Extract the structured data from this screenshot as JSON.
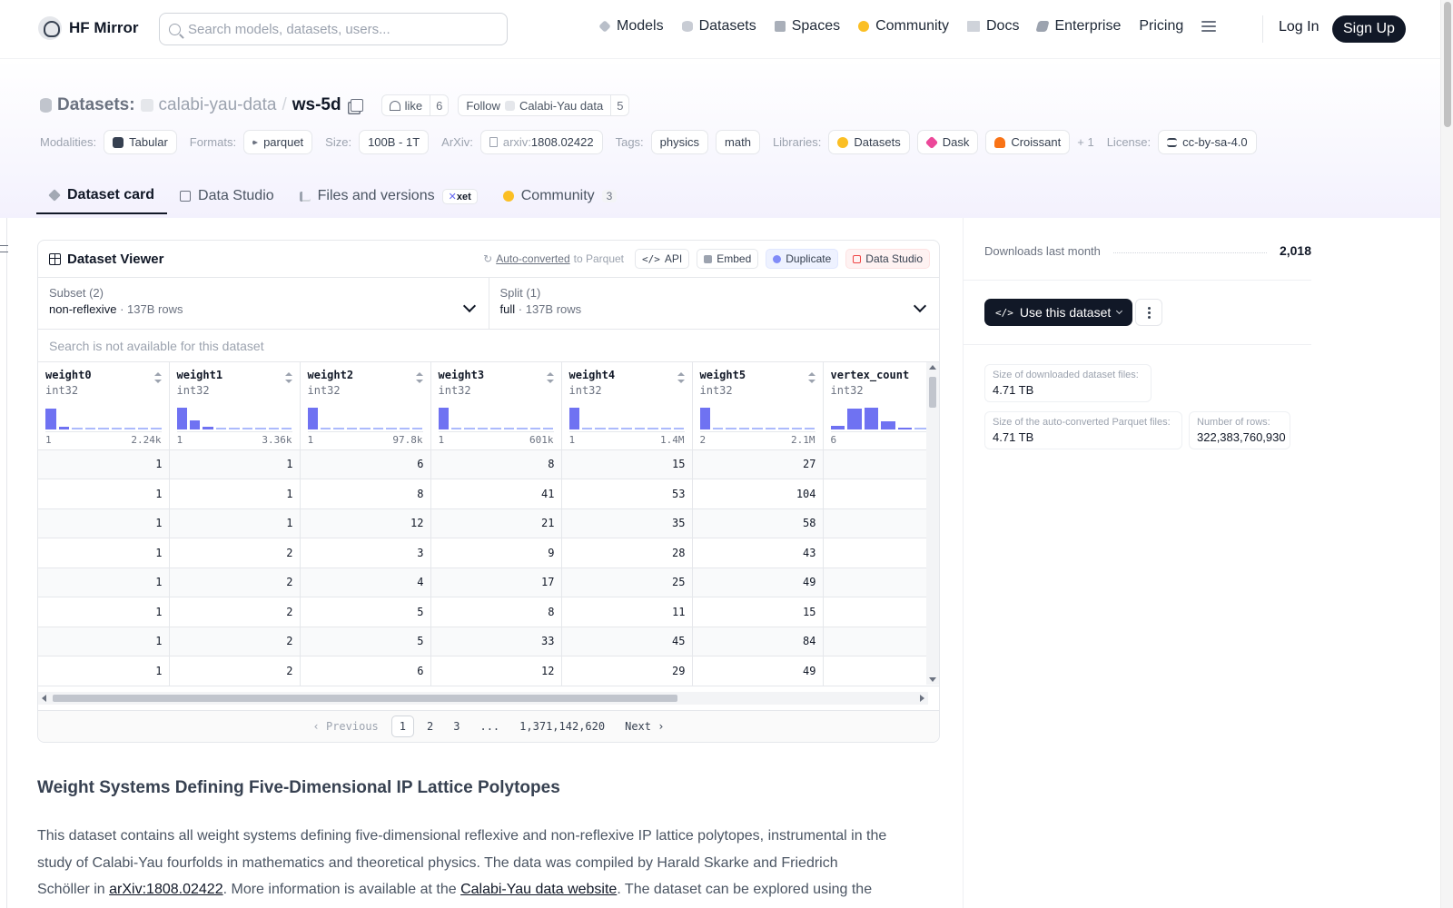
{
  "nav": {
    "brand": "HF Mirror",
    "search_placeholder": "Search models, datasets, users...",
    "links": [
      "Models",
      "Datasets",
      "Spaces",
      "Community",
      "Docs",
      "Enterprise",
      "Pricing"
    ],
    "login": "Log In",
    "signup": "Sign Up"
  },
  "header": {
    "type": "Datasets:",
    "org": "calabi-yau-data",
    "sep": "/",
    "name": "ws-5d",
    "like_label": "like",
    "like_count": "6",
    "follow_label": "Follow",
    "follow_org": "Calabi-Yau data",
    "follow_count": "5"
  },
  "meta": {
    "modalities_label": "Modalities:",
    "modality": "Tabular",
    "formats_label": "Formats:",
    "format": "parquet",
    "size_label": "Size:",
    "size": "100B - 1T",
    "arxiv_label": "ArXiv:",
    "arxiv_prefix": "arxiv:",
    "arxiv_id": "1808.02422",
    "tags_label": "Tags:",
    "tags": [
      "physics",
      "math"
    ],
    "libraries_label": "Libraries:",
    "libraries": [
      "Datasets",
      "Dask",
      "Croissant"
    ],
    "libraries_more": "+ 1",
    "license_label": "License:",
    "license": "cc-by-sa-4.0"
  },
  "tabs": {
    "card": "Dataset card",
    "studio": "Data Studio",
    "files": "Files and versions",
    "xet": "xet",
    "community": "Community",
    "community_count": "3"
  },
  "viewer": {
    "title": "Dataset Viewer",
    "auto_converted": "Auto-converted",
    "to_parquet": "to Parquet",
    "api": "API",
    "embed": "Embed",
    "duplicate": "Duplicate",
    "data_studio": "Data Studio",
    "subset_label": "Subset (2)",
    "subset_value": "non-reflexive",
    "subset_rows": "137B rows",
    "split_label": "Split (1)",
    "split_value": "full",
    "split_rows": "137B rows",
    "search_placeholder": "Search is not available for this dataset",
    "columns": [
      {
        "name": "weight0",
        "type": "int32",
        "min": "1",
        "max": "2.24k",
        "hist": [
          0.9,
          0.12,
          0,
          0,
          0,
          0,
          0,
          0,
          0
        ]
      },
      {
        "name": "weight1",
        "type": "int32",
        "min": "1",
        "max": "3.36k",
        "hist": [
          0.95,
          0.4,
          0.1,
          0,
          0,
          0,
          0,
          0,
          0
        ]
      },
      {
        "name": "weight2",
        "type": "int32",
        "min": "1",
        "max": "97.8k",
        "hist": [
          0.95,
          0,
          0,
          0,
          0,
          0,
          0,
          0,
          0
        ]
      },
      {
        "name": "weight3",
        "type": "int32",
        "min": "1",
        "max": "601k",
        "hist": [
          0.95,
          0,
          0,
          0,
          0,
          0,
          0,
          0,
          0
        ]
      },
      {
        "name": "weight4",
        "type": "int32",
        "min": "1",
        "max": "1.4M",
        "hist": [
          0.95,
          0,
          0,
          0,
          0,
          0,
          0,
          0,
          0
        ]
      },
      {
        "name": "weight5",
        "type": "int32",
        "min": "2",
        "max": "2.1M",
        "hist": [
          0.95,
          0,
          0,
          0,
          0,
          0,
          0,
          0,
          0
        ]
      },
      {
        "name": "vertex_count",
        "type": "int32",
        "min": "6",
        "max": "",
        "hist": [
          0.15,
          0.9,
          0.95,
          0.35,
          0.08,
          0,
          0
        ]
      }
    ],
    "rows": [
      [
        "1",
        "1",
        "6",
        "8",
        "15",
        "27",
        ""
      ],
      [
        "1",
        "1",
        "8",
        "41",
        "53",
        "104",
        ""
      ],
      [
        "1",
        "1",
        "12",
        "21",
        "35",
        "58",
        ""
      ],
      [
        "1",
        "2",
        "3",
        "9",
        "28",
        "43",
        ""
      ],
      [
        "1",
        "2",
        "4",
        "17",
        "25",
        "49",
        ""
      ],
      [
        "1",
        "2",
        "5",
        "8",
        "11",
        "15",
        ""
      ],
      [
        "1",
        "2",
        "5",
        "33",
        "45",
        "84",
        ""
      ],
      [
        "1",
        "2",
        "6",
        "12",
        "29",
        "49",
        ""
      ]
    ],
    "pager": {
      "previous": "Previous",
      "pages": [
        "1",
        "2",
        "3",
        "...",
        "1,371,142,620"
      ],
      "current": "1",
      "next": "Next"
    }
  },
  "card": {
    "title": "Weight Systems Defining Five-Dimensional IP Lattice Polytopes",
    "p1": "This dataset contains all weight systems defining five-dimensional reflexive and non-reflexive IP lattice polytopes, instrumental in the study of Calabi-Yau fourfolds in mathematics and theoretical physics. The data was compiled by Harald Skarke and Friedrich Schöller in ",
    "link1": "arXiv:1808.02422",
    "p2": ". More information is available at the ",
    "link2": "Calabi-Yau data website",
    "p3": ". The dataset can be explored using the"
  },
  "sidebar": {
    "downloads_label": "Downloads last month",
    "downloads_value": "2,018",
    "use_button": "Use this dataset",
    "size_files_label": "Size of downloaded dataset files:",
    "size_files_value": "4.71 TB",
    "size_parquet_label": "Size of the auto-converted Parquet files:",
    "size_parquet_value": "4.71 TB",
    "rows_label": "Number of rows:",
    "rows_value": "322,383,760,930"
  }
}
